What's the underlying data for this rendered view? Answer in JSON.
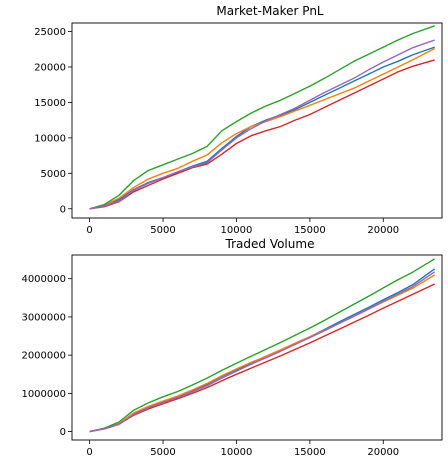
{
  "chart_data": [
    {
      "type": "line",
      "title": "Market-Maker PnL",
      "xlabel": "",
      "ylabel": "",
      "xlim": [
        -1200,
        24000
      ],
      "ylim": [
        -1300,
        26200
      ],
      "xticks": [
        0,
        5000,
        10000,
        15000,
        20000
      ],
      "yticks": [
        0,
        5000,
        10000,
        15000,
        20000,
        25000
      ],
      "xtick_labels": [
        "0",
        "5000",
        "10000",
        "15000",
        "20000"
      ],
      "ytick_labels": [
        "0",
        "5000",
        "10000",
        "15000",
        "20000",
        "25000"
      ],
      "grid": false,
      "x": [
        0,
        1000,
        2000,
        3000,
        4000,
        5000,
        6000,
        7000,
        8000,
        9000,
        10000,
        11000,
        12000,
        13000,
        14000,
        15000,
        16000,
        17000,
        18000,
        19000,
        20000,
        21000,
        22000,
        23500
      ],
      "series": [
        {
          "color": "#1f77b4",
          "values": [
            0,
            400,
            1300,
            2700,
            3700,
            4400,
            5200,
            6000,
            6700,
            8500,
            10200,
            11600,
            12500,
            13200,
            14000,
            15000,
            16000,
            17000,
            18000,
            19000,
            20000,
            20800,
            21700,
            22800
          ]
        },
        {
          "color": "#ff7f0e",
          "values": [
            0,
            500,
            1500,
            3000,
            4200,
            5000,
            5700,
            6700,
            7600,
            9300,
            10600,
            11600,
            12300,
            13000,
            13800,
            14600,
            15400,
            16200,
            17000,
            18000,
            19000,
            20000,
            21000,
            22600
          ]
        },
        {
          "color": "#2ca02c",
          "values": [
            0,
            600,
            1900,
            4000,
            5400,
            6200,
            7000,
            7800,
            8800,
            11000,
            12300,
            13500,
            14500,
            15300,
            16300,
            17300,
            18400,
            19600,
            20800,
            21800,
            22800,
            23800,
            24700,
            25800
          ]
        },
        {
          "color": "#d62728",
          "values": [
            0,
            300,
            1000,
            2400,
            3300,
            4200,
            5000,
            5800,
            6300,
            7700,
            9200,
            10300,
            11000,
            11600,
            12500,
            13300,
            14300,
            15300,
            16300,
            17300,
            18300,
            19300,
            20100,
            21000
          ]
        },
        {
          "color": "#9467bd",
          "values": [
            0,
            400,
            1100,
            2600,
            3600,
            4400,
            5200,
            5900,
            6500,
            8300,
            10000,
            11300,
            12400,
            13300,
            14200,
            15300,
            16400,
            17400,
            18400,
            19600,
            20700,
            21700,
            22700,
            23800
          ]
        }
      ]
    },
    {
      "type": "line",
      "title": "Traded Volume",
      "xlabel": "",
      "ylabel": "",
      "xlim": [
        -1200,
        24000
      ],
      "ylim": [
        -220000,
        4620000
      ],
      "xticks": [
        0,
        5000,
        10000,
        15000,
        20000
      ],
      "yticks": [
        0,
        1000000,
        2000000,
        3000000,
        4000000
      ],
      "xtick_labels": [
        "0",
        "5000",
        "10000",
        "15000",
        "20000"
      ],
      "ytick_labels": [
        "0",
        "1000000",
        "2000000",
        "3000000",
        "4000000"
      ],
      "grid": false,
      "x": [
        0,
        1000,
        2000,
        3000,
        4000,
        5000,
        6000,
        7000,
        8000,
        9000,
        10000,
        11000,
        12000,
        13000,
        14000,
        15000,
        16000,
        17000,
        18000,
        19000,
        20000,
        21000,
        22000,
        23500
      ],
      "series": [
        {
          "color": "#1f77b4",
          "values": [
            0,
            80000,
            200000,
            480000,
            650000,
            790000,
            920000,
            1070000,
            1240000,
            1440000,
            1620000,
            1790000,
            1960000,
            2130000,
            2310000,
            2480000,
            2670000,
            2870000,
            3060000,
            3250000,
            3450000,
            3640000,
            3840000,
            4260000
          ]
        },
        {
          "color": "#ff7f0e",
          "values": [
            0,
            80000,
            210000,
            490000,
            660000,
            800000,
            930000,
            1090000,
            1260000,
            1460000,
            1640000,
            1810000,
            1970000,
            2140000,
            2310000,
            2480000,
            2650000,
            2830000,
            3010000,
            3200000,
            3390000,
            3570000,
            3750000,
            4100000
          ]
        },
        {
          "color": "#2ca02c",
          "values": [
            0,
            90000,
            250000,
            560000,
            750000,
            910000,
            1050000,
            1220000,
            1400000,
            1600000,
            1790000,
            1970000,
            2150000,
            2330000,
            2520000,
            2710000,
            2910000,
            3120000,
            3330000,
            3540000,
            3760000,
            3970000,
            4170000,
            4520000
          ]
        },
        {
          "color": "#d62728",
          "values": [
            0,
            70000,
            190000,
            430000,
            590000,
            730000,
            860000,
            1000000,
            1150000,
            1330000,
            1500000,
            1660000,
            1820000,
            1980000,
            2150000,
            2320000,
            2500000,
            2680000,
            2860000,
            3040000,
            3230000,
            3410000,
            3590000,
            3860000
          ]
        },
        {
          "color": "#9467bd",
          "values": [
            0,
            75000,
            190000,
            450000,
            620000,
            760000,
            890000,
            1040000,
            1200000,
            1400000,
            1580000,
            1760000,
            1930000,
            2100000,
            2280000,
            2460000,
            2640000,
            2830000,
            3020000,
            3210000,
            3410000,
            3600000,
            3790000,
            4180000
          ]
        }
      ]
    }
  ]
}
